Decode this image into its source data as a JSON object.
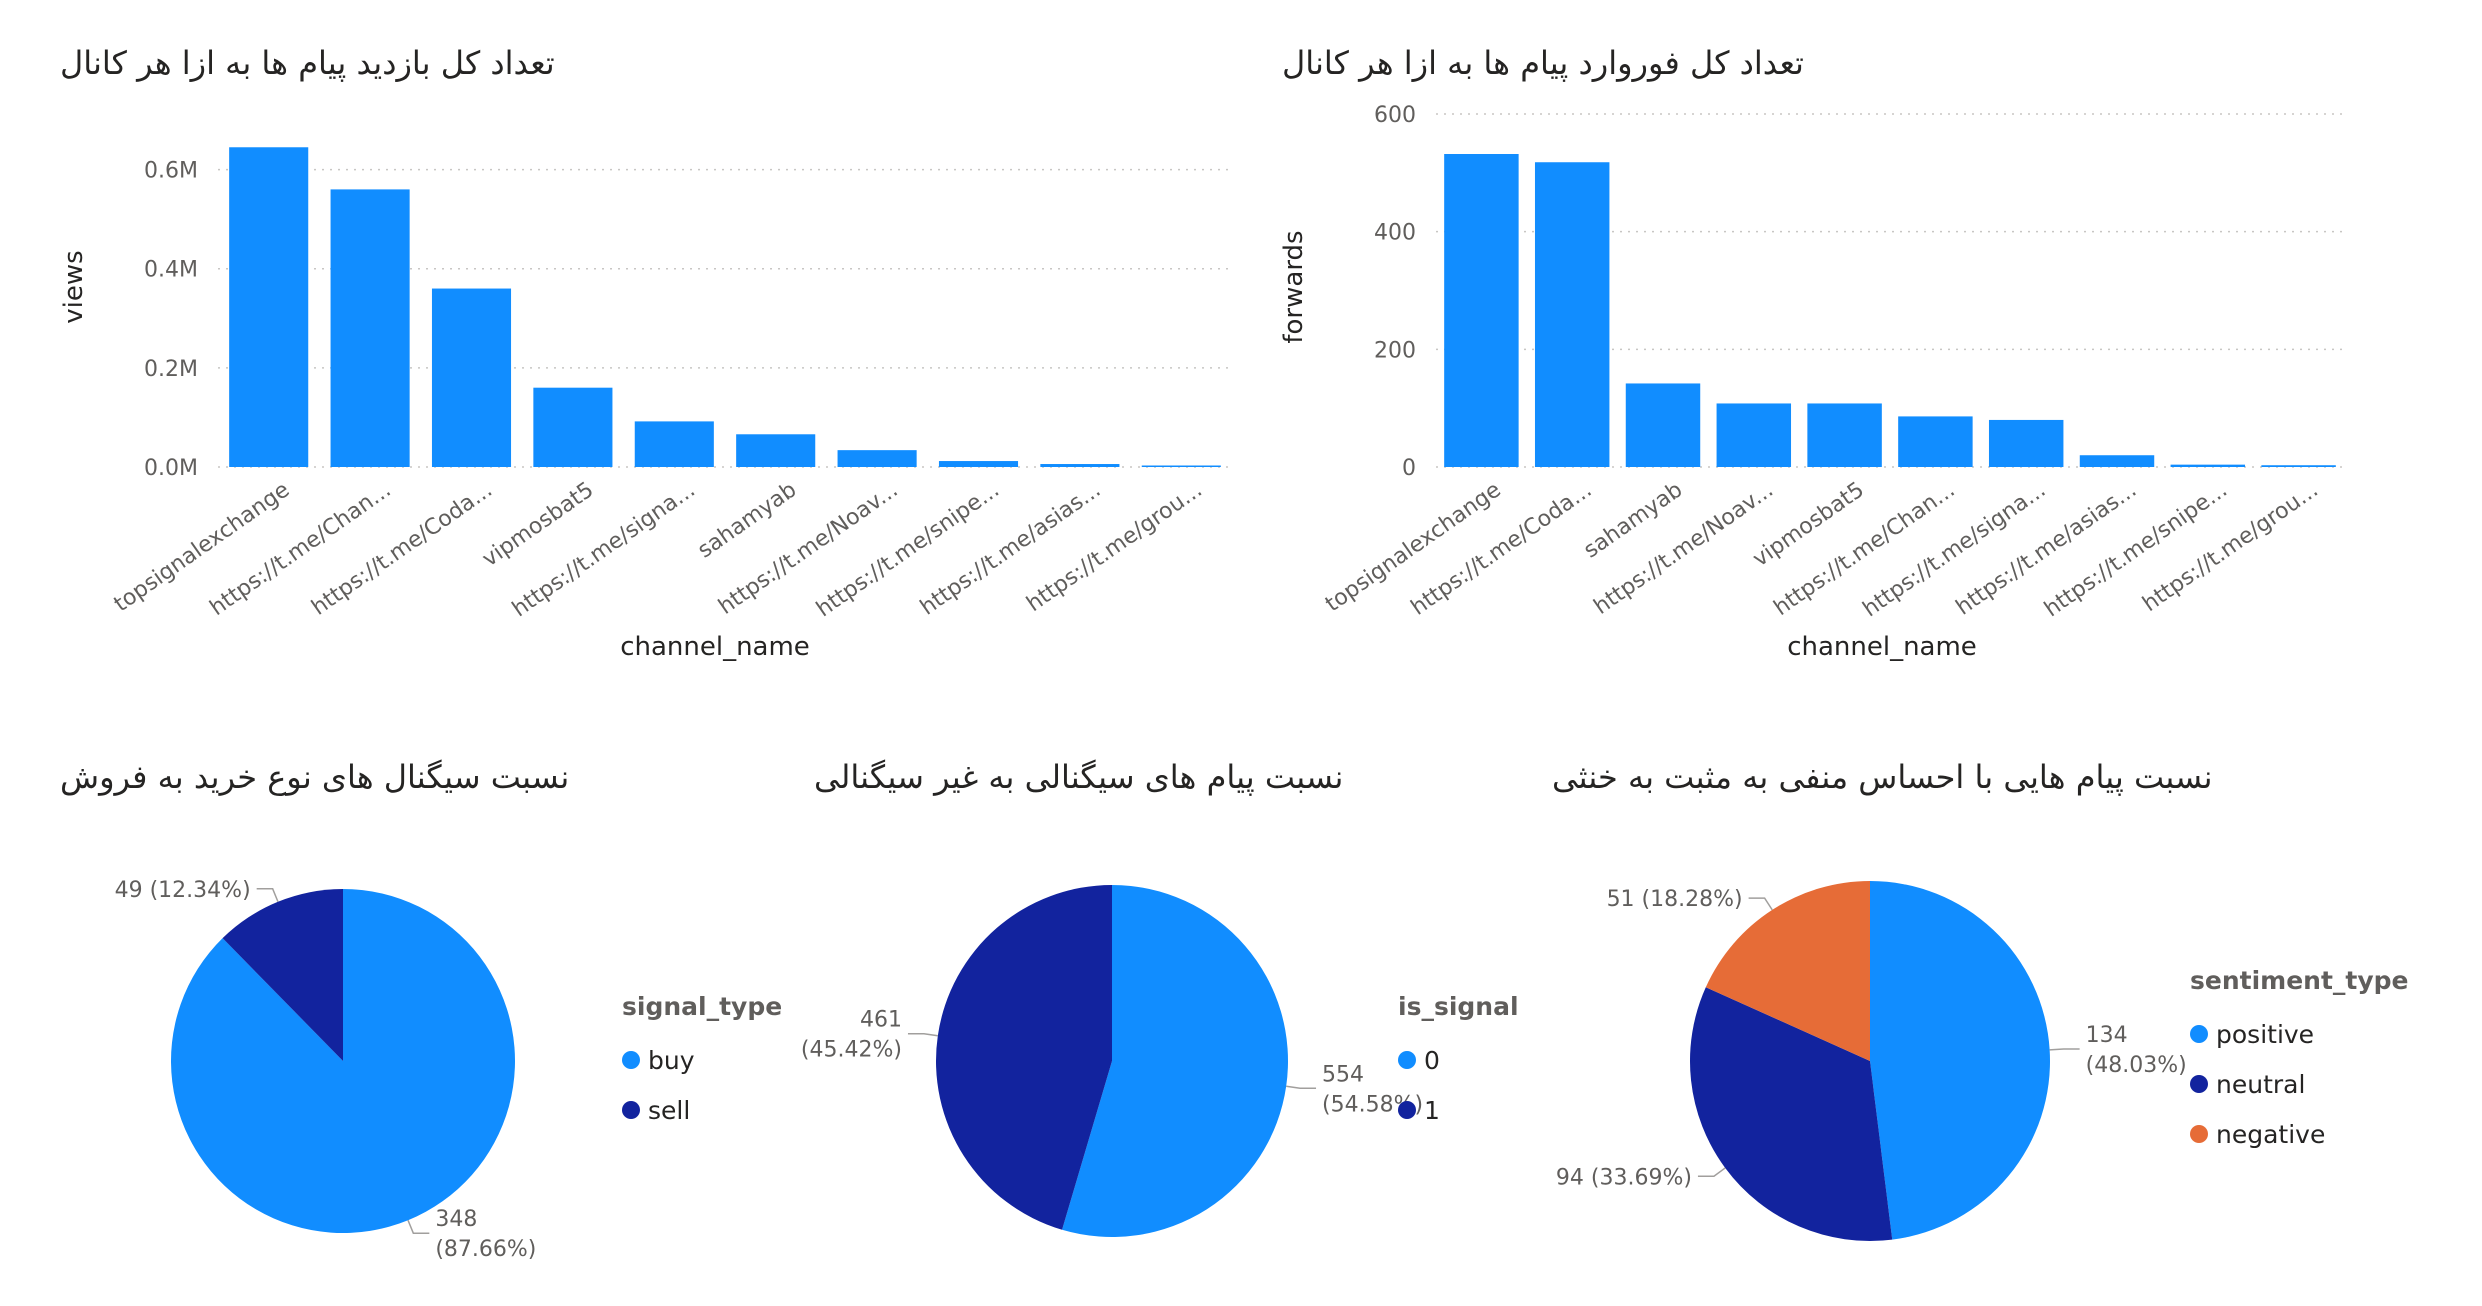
{
  "chart_data": [
    {
      "type": "bar",
      "title": "تعداد کل بازدید پیام ها به ازا هر کانال",
      "xlabel": "channel_name",
      "ylabel": "views",
      "ylim": [
        0,
        700000
      ],
      "ytick_values": [
        0,
        200000,
        400000,
        600000
      ],
      "ytick_labels": [
        "0.0M",
        "0.2M",
        "0.4M",
        "0.6M"
      ],
      "grid": true,
      "color": "#118DFF",
      "categories": [
        "topsignalexchange",
        "https://t.me/Chan...",
        "https://t.me/Coda...",
        "vipmosbat5",
        "https://t.me/signa...",
        "sahamyab",
        "https://t.me/Noav...",
        "https://t.me/snipe...",
        "https://t.me/asias...",
        "https://t.me/grou..."
      ],
      "values": [
        645000,
        560000,
        360000,
        160000,
        92000,
        66000,
        34000,
        12000,
        6000,
        3000
      ]
    },
    {
      "type": "bar",
      "title": "تعداد کل فوروارد پیام ها به ازا هر کانال",
      "xlabel": "channel_name",
      "ylabel": "forwards",
      "ylim": [
        0,
        600
      ],
      "ytick_values": [
        0,
        200,
        400,
        600
      ],
      "ytick_labels": [
        "0",
        "200",
        "400",
        "600"
      ],
      "grid": true,
      "color": "#118DFF",
      "categories": [
        "topsignalexchange",
        "https://t.me/Coda...",
        "sahamyab",
        "https://t.me/Noav...",
        "vipmosbat5",
        "https://t.me/Chan...",
        "https://t.me/signa...",
        "https://t.me/asias...",
        "https://t.me/snipe...",
        "https://t.me/grou..."
      ],
      "values": [
        532,
        518,
        142,
        108,
        108,
        86,
        80,
        20,
        4,
        3
      ]
    },
    {
      "type": "pie",
      "title": "نسبت سیگنال های نوع خرید به فروش",
      "legend_title": "signal_type",
      "legend_position": "right",
      "slices": [
        {
          "label": "buy",
          "value": 348,
          "percent": "87.66%",
          "color": "#118DFF",
          "data_label": [
            "348",
            "(87.66%)"
          ]
        },
        {
          "label": "sell",
          "value": 49,
          "percent": "12.34%",
          "color": "#12239E",
          "data_label": [
            "49 (12.34%)"
          ]
        }
      ]
    },
    {
      "type": "pie",
      "title": "نسبت پیام های سیگنالی به غیر سیگنالی",
      "legend_title": "is_signal",
      "legend_position": "right",
      "slices": [
        {
          "label": "0",
          "value": 554,
          "percent": "54.58%",
          "color": "#118DFF",
          "data_label": [
            "554",
            "(54.58%)"
          ]
        },
        {
          "label": "1",
          "value": 461,
          "percent": "45.42%",
          "color": "#12239E",
          "data_label": [
            "461",
            "(45.42%)"
          ]
        }
      ]
    },
    {
      "type": "pie",
      "title": "نسبت پیام هایی با احساس منفی به مثبت به خنثی",
      "legend_title": "sentiment_type",
      "legend_position": "right",
      "slices": [
        {
          "label": "positive",
          "value": 134,
          "percent": "48.03%",
          "color": "#118DFF",
          "data_label": [
            "134",
            "(48.03%)"
          ]
        },
        {
          "label": "neutral",
          "value": 94,
          "percent": "33.69%",
          "color": "#12239E",
          "data_label": [
            "94 (33.69%)"
          ]
        },
        {
          "label": "negative",
          "value": 51,
          "percent": "18.28%",
          "color": "#E66C37",
          "data_label": [
            "51 (18.28%)"
          ]
        }
      ]
    }
  ]
}
